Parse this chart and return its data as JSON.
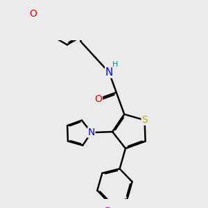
{
  "background_color": "#ebebeb",
  "atom_colors": {
    "C": "#000000",
    "H": "#008888",
    "N": "#0000ff",
    "O": "#ff0000",
    "S": "#bbaa00",
    "F": "#ee00ee"
  },
  "bond_color": "#000000",
  "bond_width": 1.8,
  "font_size_atom": 10,
  "font_size_small": 8
}
